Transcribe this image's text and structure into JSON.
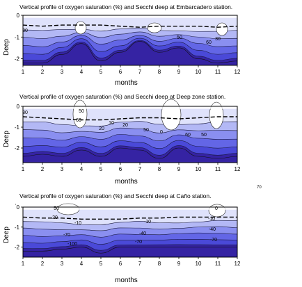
{
  "chart_data": [
    {
      "type": "contour",
      "title": "Vertical profile of oxygen saturation (%) and Secchi deep at Embarcadero station.",
      "xlabel": "months",
      "ylabel": "Deep",
      "x_ticks": [
        1,
        2,
        3,
        4,
        5,
        6,
        7,
        8,
        9,
        10,
        11,
        12
      ],
      "y_ticks": [
        0,
        -1,
        -2
      ],
      "xlim": [
        1,
        12
      ],
      "ylim": [
        -2.3,
        0
      ],
      "contour_labels": [
        "30",
        "50",
        "60",
        "30"
      ],
      "secchi_depth": [
        -0.45,
        -0.5,
        -0.45,
        -0.45,
        -0.45,
        -0.5,
        -0.55,
        -0.5,
        -0.5,
        -0.5,
        -0.55,
        -0.5
      ],
      "bottom_profile": [
        -2.2,
        -2.2,
        -1.8,
        -1.3,
        -2.1,
        -1.7,
        -1.2,
        -1.7,
        -1.5,
        -2.0,
        -2.2,
        -2.1
      ],
      "colors": [
        "#ffffff",
        "#dfe2fb",
        "#b3b8f5",
        "#8a8ff0",
        "#6366e6",
        "#4a49d8",
        "#3523a3"
      ]
    },
    {
      "type": "contour",
      "title": "Vertical profile of oxygen saturation (%) and Secchi deep at Deep zone  station.",
      "xlabel": "months",
      "ylabel": "Deep",
      "x_ticks": [
        1,
        2,
        3,
        4,
        5,
        6,
        7,
        8,
        9,
        10,
        11,
        12
      ],
      "y_ticks": [
        0,
        -1,
        -2
      ],
      "xlim": [
        1,
        12
      ],
      "ylim": [
        -2.7,
        0
      ],
      "contour_labels": [
        "30",
        "50",
        "60",
        "20",
        "10",
        "20",
        "50",
        "0",
        "60",
        "50"
      ],
      "secchi_depth": [
        -0.5,
        -0.55,
        -0.6,
        -0.65,
        -0.65,
        -0.6,
        -0.55,
        -0.55,
        -0.6,
        -0.55,
        -0.5,
        -0.5
      ],
      "bottom_profile": [
        -2.4,
        -2.3,
        -2.4,
        -2.1,
        -2.4,
        -2.0,
        -2.1,
        -2.5,
        -2.0,
        -2.4,
        -2.5,
        -2.4
      ],
      "colors": [
        "#ffffff",
        "#dfe2fb",
        "#b3b8f5",
        "#8a8ff0",
        "#6366e6",
        "#4a49d8",
        "#3523a3"
      ]
    },
    {
      "type": "contour",
      "title": "Vertical profile of oxygen saturation (%) and Secchi deep at Caño station.",
      "xlabel": "months",
      "ylabel": "Deep",
      "x_ticks": [
        1,
        2,
        3,
        4,
        5,
        6,
        7,
        8,
        9,
        10,
        11,
        12
      ],
      "y_ticks": [
        0,
        -1,
        -2
      ],
      "xlim": [
        1,
        12
      ],
      "ylim": [
        -2.5,
        0
      ],
      "contour_labels": [
        "50",
        "20",
        "-10",
        "-70",
        "-100",
        "-10",
        "-40",
        "-70",
        "0",
        "-10",
        "-40",
        "-70"
      ],
      "secchi_depth": [
        -0.5,
        -0.55,
        -0.55,
        -0.6,
        -0.6,
        -0.6,
        -0.55,
        -0.55,
        -0.5,
        -0.5,
        -0.5,
        -0.5
      ],
      "bottom_profile": [
        -2.2,
        -2.2,
        -2.1,
        -2.0,
        -2.3,
        -2.0,
        -2.0,
        -2.0,
        -2.0,
        -2.0,
        -2.0,
        -2.0
      ],
      "colors": [
        "#ffffff",
        "#dfe2fb",
        "#b3b8f5",
        "#8a8ff0",
        "#6366e6",
        "#4a49d8",
        "#3523a3"
      ]
    }
  ],
  "stray_label": "70",
  "stray_mark": "'"
}
